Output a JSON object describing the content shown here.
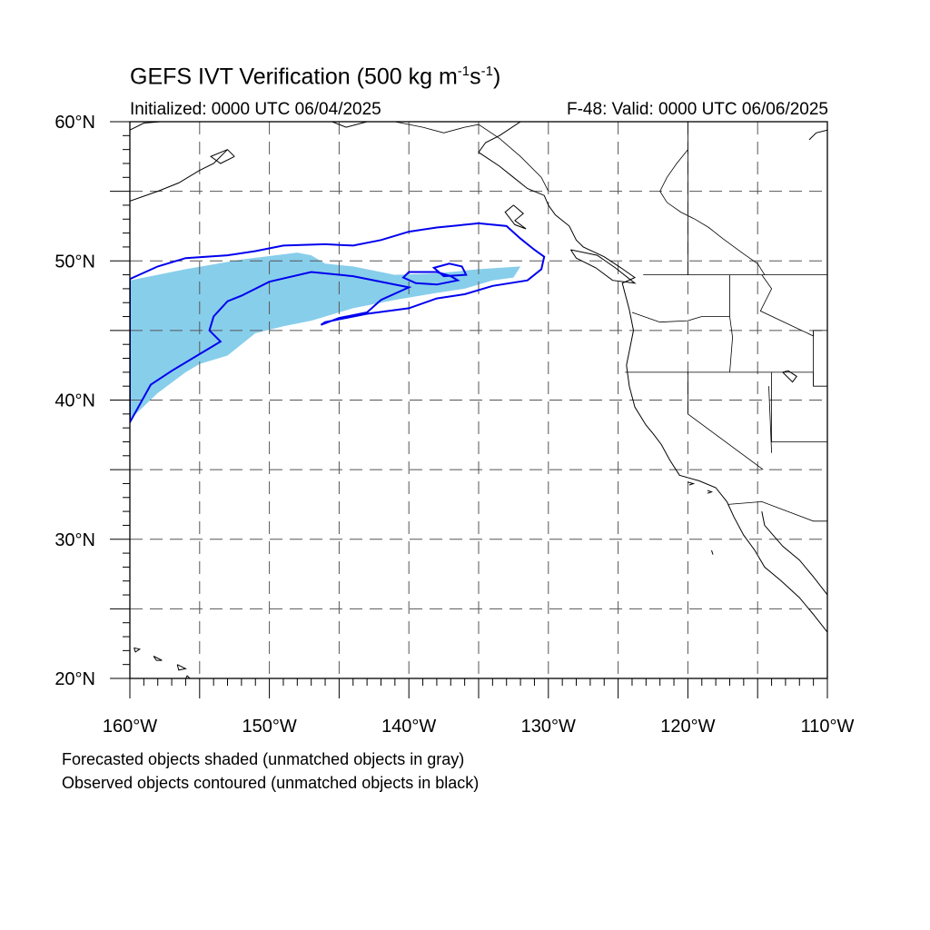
{
  "header": {
    "title_main": "GEFS IVT Verification (500 kg m",
    "title_sup1": "-1",
    "title_mid": "s",
    "title_sup2": "-1",
    "title_end": ")",
    "initialized": "Initialized: 0000 UTC 06/04/2025",
    "valid": "F-48: Valid: 0000 UTC 06/06/2025"
  },
  "map": {
    "projection": "cylindrical equidistant",
    "lon_range": [
      -160,
      -110
    ],
    "lat_range": [
      20,
      60
    ],
    "gridlines": "dashed",
    "lat_ticks": [
      {
        "lat": 60,
        "label": "60°N"
      },
      {
        "lat": 50,
        "label": "50°N"
      },
      {
        "lat": 40,
        "label": "40°N"
      },
      {
        "lat": 30,
        "label": "30°N"
      },
      {
        "lat": 20,
        "label": "20°N"
      }
    ],
    "lon_ticks": [
      {
        "lon": -160,
        "label": "160°W"
      },
      {
        "lon": -150,
        "label": "150°W"
      },
      {
        "lon": -140,
        "label": "140°W"
      },
      {
        "lon": -130,
        "label": "130°W"
      },
      {
        "lon": -120,
        "label": "120°W"
      },
      {
        "lon": -110,
        "label": "110°W"
      }
    ],
    "colors": {
      "forecast_fill": "#87ceeb",
      "observed_contour": "#0000ee",
      "coastline": "#000000",
      "grid": "#555555"
    }
  },
  "objects": {
    "forecast": [
      {
        "name": "forecast-object-1",
        "points": [
          [
            -160,
            48.6
          ],
          [
            -156,
            49.4
          ],
          [
            -152,
            50.1
          ],
          [
            -148,
            50.6
          ],
          [
            -147,
            50.4
          ],
          [
            -146,
            49.8
          ],
          [
            -144,
            49.6
          ],
          [
            -141,
            49.0
          ],
          [
            -138,
            49.1
          ],
          [
            -135,
            49.4
          ],
          [
            -132,
            49.6
          ],
          [
            -132.5,
            48.8
          ],
          [
            -134,
            48.6
          ],
          [
            -136,
            48.0
          ],
          [
            -138,
            47.7
          ],
          [
            -141,
            47.2
          ],
          [
            -144,
            46.6
          ],
          [
            -147,
            45.7
          ],
          [
            -149,
            45.3
          ],
          [
            -151,
            44.8
          ],
          [
            -153,
            43.2
          ],
          [
            -155,
            42.6
          ],
          [
            -156,
            42.0
          ],
          [
            -158,
            40.5
          ],
          [
            -160,
            38.6
          ]
        ]
      }
    ],
    "observed": [
      {
        "name": "observed-contour-main",
        "points": [
          [
            -160,
            48.7
          ],
          [
            -158,
            49.6
          ],
          [
            -156,
            50.2
          ],
          [
            -153,
            50.4
          ],
          [
            -151,
            50.7
          ],
          [
            -149,
            51.1
          ],
          [
            -146,
            51.2
          ],
          [
            -144,
            51.1
          ],
          [
            -142,
            51.5
          ],
          [
            -140,
            52.1
          ],
          [
            -138,
            52.4
          ],
          [
            -135,
            52.7
          ],
          [
            -133,
            52.5
          ],
          [
            -132,
            51.6
          ],
          [
            -131,
            50.8
          ],
          [
            -130.3,
            50.3
          ],
          [
            -130.5,
            49.4
          ],
          [
            -131.5,
            48.6
          ],
          [
            -134,
            48.2
          ],
          [
            -136,
            47.6
          ],
          [
            -138,
            47.3
          ],
          [
            -140,
            46.6
          ],
          [
            -143,
            46.2
          ],
          [
            -146,
            45.6
          ],
          [
            -146.3,
            45.4
          ],
          [
            -145,
            45.9
          ],
          [
            -143,
            46.3
          ],
          [
            -142,
            47.2
          ],
          [
            -140,
            48.1
          ],
          [
            -144,
            48.9
          ],
          [
            -147,
            49.2
          ],
          [
            -150,
            48.5
          ],
          [
            -152,
            47.5
          ],
          [
            -153,
            47.1
          ],
          [
            -154,
            46.0
          ],
          [
            -154.3,
            45.0
          ],
          [
            -153.5,
            44.2
          ],
          [
            -155,
            43.3
          ],
          [
            -157,
            42.1
          ],
          [
            -158.5,
            41.1
          ],
          [
            -160,
            38.4
          ]
        ]
      },
      {
        "name": "observed-contour-small-1",
        "points": [
          [
            -140,
            49.2
          ],
          [
            -138,
            49.2
          ],
          [
            -137,
            48.9
          ],
          [
            -136.5,
            48.6
          ],
          [
            -138,
            48.3
          ],
          [
            -139.5,
            48.4
          ],
          [
            -140.4,
            48.8
          ]
        ]
      },
      {
        "name": "observed-contour-small-2",
        "points": [
          [
            -138.2,
            49.5
          ],
          [
            -137.1,
            49.8
          ],
          [
            -136.2,
            49.6
          ],
          [
            -135.9,
            49.0
          ],
          [
            -137.5,
            48.9
          ]
        ]
      }
    ]
  },
  "coast": {
    "lines": [
      [
        [
          -132,
          60
        ],
        [
          -133.5,
          59
        ],
        [
          -134.5,
          58.5
        ],
        [
          -135,
          57.8
        ],
        [
          -133.5,
          56.8
        ],
        [
          -132.5,
          56
        ],
        [
          -131.5,
          55.2
        ],
        [
          -130.3,
          54.7
        ],
        [
          -130,
          54
        ],
        [
          -129.5,
          53.3
        ],
        [
          -128.5,
          52.5
        ],
        [
          -128,
          51.5
        ],
        [
          -127.5,
          51
        ],
        [
          -126,
          50.3
        ],
        [
          -124.8,
          49.5
        ],
        [
          -123.8,
          48.8
        ],
        [
          -124.7,
          48.4
        ],
        [
          -124.2,
          46.5
        ],
        [
          -123.9,
          45
        ],
        [
          -124.4,
          42.5
        ],
        [
          -124.2,
          41
        ],
        [
          -123.8,
          39.5
        ],
        [
          -123,
          38.2
        ],
        [
          -122.5,
          37.6
        ],
        [
          -121.9,
          36.8
        ],
        [
          -121.3,
          35.7
        ],
        [
          -120.6,
          34.6
        ],
        [
          -119.2,
          34.2
        ],
        [
          -118,
          33.7
        ],
        [
          -117.2,
          32.7
        ],
        [
          -116.7,
          31.6
        ],
        [
          -116,
          30.3
        ],
        [
          -115.2,
          29.2
        ],
        [
          -114.5,
          28
        ],
        [
          -113.3,
          27
        ],
        [
          -112,
          25.8
        ],
        [
          -111,
          24.6
        ],
        [
          -109.9,
          23.2
        ]
      ],
      [
        [
          -114.7,
          32
        ],
        [
          -114.5,
          31
        ],
        [
          -113.2,
          29.5
        ],
        [
          -112,
          28.5
        ],
        [
          -111,
          27.3
        ],
        [
          -110,
          26
        ]
      ],
      [
        [
          -160,
          54.3
        ],
        [
          -158,
          55
        ],
        [
          -156.5,
          55.6
        ],
        [
          -155,
          56.5
        ],
        [
          -154,
          57
        ],
        [
          -153,
          58
        ]
      ],
      [
        [
          -160,
          59.4
        ],
        [
          -159,
          59.9
        ],
        [
          -157.8,
          60
        ]
      ],
      [
        [
          -145.5,
          60
        ],
        [
          -144.5,
          59.6
        ],
        [
          -143,
          60
        ]
      ],
      [
        [
          -110,
          59.4
        ],
        [
          -110.8,
          59.2
        ],
        [
          -111.3,
          58.7
        ]
      ],
      [
        [
          -152.5,
          57.5
        ],
        [
          -153.5,
          57
        ],
        [
          -154.2,
          57.5
        ],
        [
          -153,
          58
        ],
        [
          -152.5,
          57.5
        ]
      ],
      [
        [
          -132.5,
          54
        ],
        [
          -131.8,
          53.4
        ],
        [
          -132.4,
          52.9
        ],
        [
          -131.6,
          52.3
        ],
        [
          -132.4,
          52.6
        ],
        [
          -133.1,
          53.5
        ],
        [
          -132.5,
          54
        ]
      ],
      [
        [
          -128.4,
          50.8
        ],
        [
          -126.5,
          50.4
        ],
        [
          -125.2,
          49.5
        ],
        [
          -123.8,
          48.4
        ],
        [
          -125.4,
          48.6
        ],
        [
          -126.6,
          49.5
        ],
        [
          -128,
          50.2
        ],
        [
          -128.4,
          50.8
        ]
      ],
      [
        [
          -155.9,
          20.2
        ],
        [
          -155.2,
          19.5
        ],
        [
          -155.6,
          18.9
        ],
        [
          -156.1,
          19.7
        ],
        [
          -155.9,
          20.2
        ]
      ],
      [
        [
          -156.6,
          21
        ],
        [
          -156,
          20.7
        ],
        [
          -156.5,
          20.6
        ],
        [
          -156.6,
          21
        ]
      ],
      [
        [
          -158.3,
          21.6
        ],
        [
          -157.7,
          21.3
        ],
        [
          -158.1,
          21.3
        ],
        [
          -158.3,
          21.6
        ]
      ],
      [
        [
          -159.7,
          22.2
        ],
        [
          -159.3,
          22.1
        ],
        [
          -159.6,
          21.9
        ],
        [
          -159.7,
          22.2
        ]
      ],
      [
        [
          -118.6,
          33.5
        ],
        [
          -118.3,
          33.4
        ],
        [
          -118.6,
          33.3
        ]
      ],
      [
        [
          -120,
          34.1
        ],
        [
          -119.6,
          34
        ],
        [
          -119.9,
          33.9
        ]
      ],
      [
        [
          -113.2,
          42
        ],
        [
          -112.5,
          41.3
        ],
        [
          -112.2,
          41.7
        ],
        [
          -112.8,
          42.1
        ],
        [
          -113.2,
          42
        ]
      ],
      [
        [
          -118.3,
          29.2
        ],
        [
          -118.2,
          28.9
        ]
      ]
    ],
    "borders": [
      [
        [
          -141,
          60
        ],
        [
          -139,
          59.6
        ],
        [
          -137.5,
          59.2
        ],
        [
          -136,
          59.6
        ],
        [
          -135,
          59.8
        ],
        [
          -133.5,
          58.8
        ],
        [
          -132,
          57.5
        ],
        [
          -130.5,
          56
        ],
        [
          -130,
          55
        ]
      ],
      [
        [
          -123.2,
          49
        ],
        [
          -110,
          49
        ]
      ],
      [
        [
          -124.5,
          42
        ],
        [
          -111,
          42
        ],
        [
          -111,
          41
        ],
        [
          -110,
          41
        ]
      ],
      [
        [
          -120,
          42
        ],
        [
          -120,
          39
        ],
        [
          -114.6,
          35
        ]
      ],
      [
        [
          -117,
          49
        ],
        [
          -117,
          46
        ],
        [
          -116.8,
          44.5
        ],
        [
          -117,
          42
        ]
      ],
      [
        [
          -124,
          46.3
        ],
        [
          -122,
          45.6
        ],
        [
          -120,
          45.7
        ],
        [
          -119,
          46
        ],
        [
          -117,
          46
        ]
      ],
      [
        [
          -114,
          42
        ],
        [
          -114,
          37
        ],
        [
          -110,
          37
        ]
      ],
      [
        [
          -114.2,
          41
        ],
        [
          -114,
          36.2
        ]
      ],
      [
        [
          -120,
          60
        ],
        [
          -120,
          49
        ]
      ],
      [
        [
          -114.7,
          49
        ],
        [
          -114,
          48
        ],
        [
          -114.8,
          46.4
        ],
        [
          -111,
          44.6
        ],
        [
          -111,
          45
        ]
      ],
      [
        [
          -110,
          45
        ],
        [
          -111,
          45
        ],
        [
          -111,
          41
        ]
      ],
      [
        [
          -117.1,
          32.5
        ],
        [
          -114.7,
          32.7
        ],
        [
          -111,
          31.3
        ],
        [
          -110,
          31.3
        ]
      ],
      [
        [
          -120,
          58
        ],
        [
          -120.8,
          57
        ],
        [
          -121.5,
          56
        ],
        [
          -122,
          55
        ],
        [
          -121.5,
          54.2
        ],
        [
          -120.5,
          53.5
        ],
        [
          -119.5,
          53
        ],
        [
          -118.5,
          52.4
        ],
        [
          -117.5,
          51.6
        ],
        [
          -116,
          50.5
        ],
        [
          -115,
          49.8
        ],
        [
          -114.5,
          49
        ]
      ]
    ]
  },
  "captions": {
    "line1": "Forecasted objects shaded (unmatched objects in gray)",
    "line2": "Observed objects contoured (unmatched objects in black)"
  }
}
